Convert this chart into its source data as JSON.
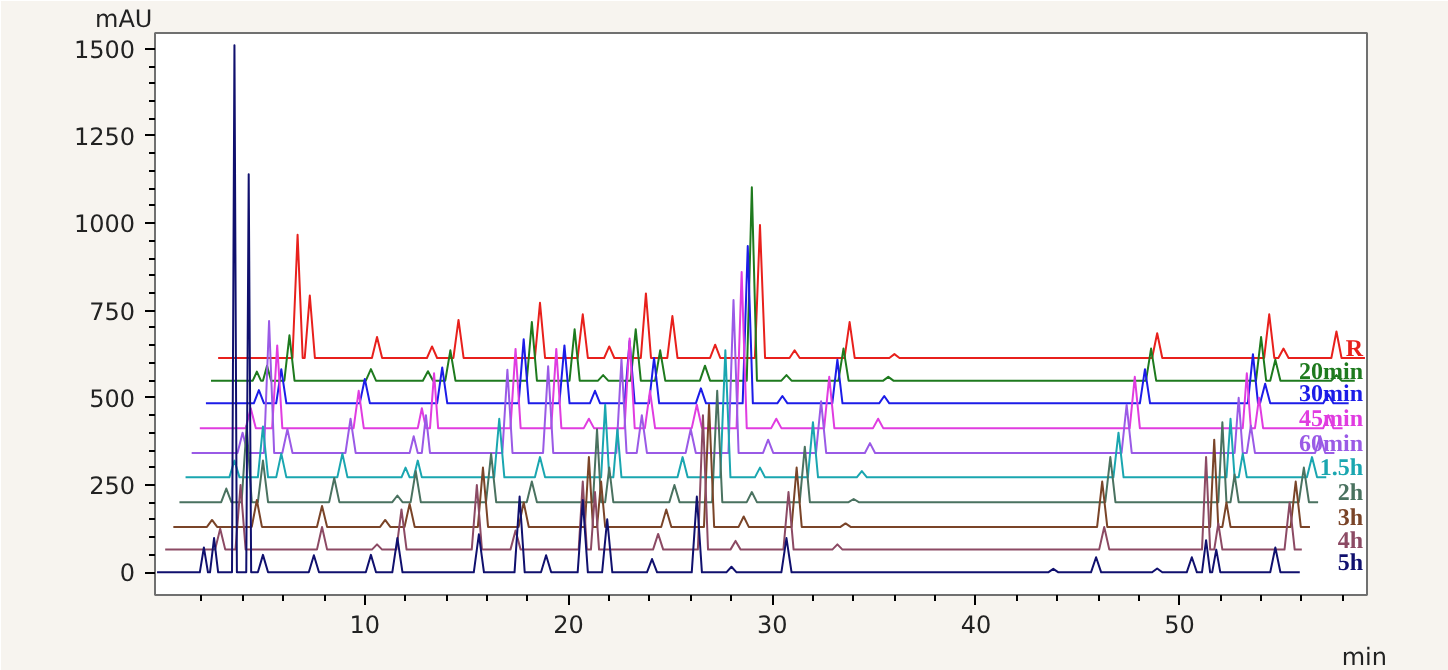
{
  "chart_data": {
    "type": "line",
    "xlabel": "min",
    "ylabel": "mAU",
    "xlim": [
      -0.3,
      59.2
    ],
    "ylim": [
      -65,
      1545
    ],
    "grid": false,
    "marker": "none",
    "line_style": "solid",
    "xticks": [
      {
        "value": 2,
        "label": null
      },
      {
        "value": 4,
        "label": null
      },
      {
        "value": 6,
        "label": null
      },
      {
        "value": 8,
        "label": null
      },
      10,
      {
        "value": 12,
        "label": null
      },
      {
        "value": 14,
        "label": null
      },
      {
        "value": 16,
        "label": null
      },
      {
        "value": 18,
        "label": null
      },
      20,
      {
        "value": 22,
        "label": null
      },
      {
        "value": 24,
        "label": null
      },
      {
        "value": 26,
        "label": null
      },
      {
        "value": 28,
        "label": null
      },
      30,
      {
        "value": 32,
        "label": null
      },
      {
        "value": 34,
        "label": null
      },
      {
        "value": 36,
        "label": null
      },
      {
        "value": 38,
        "label": null
      },
      40,
      {
        "value": 42,
        "label": null
      },
      {
        "value": 44,
        "label": null
      },
      {
        "value": 46,
        "label": null
      },
      {
        "value": 48,
        "label": null
      },
      50,
      {
        "value": 52,
        "label": null
      },
      {
        "value": 54,
        "label": null
      },
      {
        "value": 56,
        "label": null
      },
      {
        "value": 58,
        "label": null
      }
    ],
    "yticks": [
      0,
      {
        "value": 50,
        "label": null
      },
      {
        "value": 100,
        "label": null
      },
      {
        "value": 150,
        "label": null
      },
      {
        "value": 200,
        "label": null
      },
      250,
      {
        "value": 300,
        "label": null
      },
      {
        "value": 350,
        "label": null
      },
      {
        "value": 400,
        "label": null
      },
      {
        "value": 450,
        "label": null
      },
      500,
      {
        "value": 550,
        "label": null
      },
      {
        "value": 600,
        "label": null
      },
      {
        "value": 650,
        "label": null
      },
      {
        "value": 700,
        "label": null
      },
      750,
      {
        "value": 800,
        "label": null
      },
      {
        "value": 850,
        "label": null
      },
      {
        "value": 900,
        "label": null
      },
      {
        "value": 950,
        "label": null
      },
      1000,
      {
        "value": 1050,
        "label": null
      },
      {
        "value": 1100,
        "label": null
      },
      {
        "value": 1150,
        "label": null
      },
      {
        "value": 1200,
        "label": null
      },
      1250,
      {
        "value": 1300,
        "label": null
      },
      {
        "value": 1350,
        "label": null
      },
      {
        "value": 1400,
        "label": null
      },
      {
        "value": 1450,
        "label": null
      },
      1500
    ],
    "series": [
      {
        "name": "R",
        "color": "#e8201c",
        "x": [
          2.8,
          6.45,
          6.7,
          6.95,
          7.05,
          7.3,
          7.55,
          10.35,
          10.6,
          10.85,
          13.05,
          13.3,
          13.55,
          14.35,
          14.6,
          14.85,
          18.35,
          18.6,
          18.85,
          20.45,
          20.7,
          20.95,
          21.75,
          22.0,
          22.25,
          23.55,
          23.8,
          24.05,
          24.85,
          25.1,
          25.35,
          26.95,
          27.2,
          27.45,
          29.15,
          29.4,
          29.65,
          30.85,
          31.1,
          31.35,
          33.55,
          33.8,
          34.05,
          35.75,
          36.0,
          36.25,
          48.65,
          48.9,
          49.15,
          54.15,
          54.4,
          54.65,
          54.85,
          55.1,
          55.35,
          57.45,
          57.7,
          57.95,
          59.1
        ],
        "values": [
          614,
          614,
          967,
          614,
          614,
          793,
          614,
          614,
          674,
          614,
          614,
          647,
          614,
          614,
          723,
          614,
          614,
          772,
          614,
          614,
          739,
          614,
          614,
          647,
          614,
          614,
          799,
          614,
          614,
          734,
          614,
          614,
          652,
          614,
          614,
          995,
          614,
          614,
          636,
          614,
          614,
          717,
          614,
          614,
          625,
          614,
          614,
          685,
          614,
          614,
          739,
          614,
          614,
          641,
          614,
          614,
          690,
          614,
          614
        ]
      },
      {
        "name": "20min",
        "color": "#1e7a1e",
        "x": [
          2.45,
          4.5,
          4.7,
          4.9,
          5.0,
          5.2,
          5.4,
          6.05,
          6.3,
          6.55,
          10.05,
          10.3,
          10.55,
          12.85,
          13.1,
          13.35,
          13.95,
          14.2,
          14.45,
          17.95,
          18.2,
          18.45,
          20.05,
          20.3,
          20.55,
          21.45,
          21.7,
          21.95,
          23.05,
          23.3,
          23.55,
          24.25,
          24.5,
          24.75,
          26.45,
          26.7,
          26.95,
          28.75,
          29.0,
          29.25,
          30.45,
          30.7,
          30.95,
          33.25,
          33.5,
          33.75,
          35.45,
          35.7,
          35.95,
          48.35,
          48.6,
          48.85,
          53.75,
          54.0,
          54.25,
          54.45,
          54.7,
          54.95,
          57.45,
          57.7,
          57.95,
          58.6
        ],
        "values": [
          549,
          549,
          575,
          549,
          549,
          592,
          549,
          549,
          679,
          549,
          549,
          582,
          549,
          549,
          576,
          549,
          549,
          636,
          549,
          549,
          717,
          549,
          549,
          696,
          549,
          549,
          565,
          549,
          549,
          696,
          549,
          549,
          636,
          549,
          549,
          592,
          549,
          549,
          1103,
          549,
          549,
          565,
          549,
          549,
          641,
          549,
          549,
          560,
          549,
          549,
          641,
          549,
          549,
          674,
          549,
          549,
          609,
          549,
          549,
          565,
          549,
          549
        ]
      },
      {
        "name": "30min",
        "color": "#1c1ce8",
        "x": [
          2.2,
          4.55,
          4.8,
          5.05,
          5.65,
          5.9,
          6.15,
          9.75,
          10.0,
          10.25,
          13.55,
          13.8,
          14.05,
          17.55,
          17.8,
          18.05,
          19.55,
          19.8,
          20.05,
          21.05,
          21.3,
          21.55,
          22.75,
          23.0,
          23.25,
          23.95,
          24.2,
          24.45,
          26.25,
          26.5,
          26.75,
          28.55,
          28.8,
          29.05,
          30.25,
          30.5,
          30.75,
          32.95,
          33.2,
          33.45,
          35.25,
          35.5,
          35.75,
          48.05,
          48.3,
          48.55,
          53.35,
          53.6,
          53.85,
          53.95,
          54.2,
          54.45,
          57.05,
          57.3,
          57.55,
          58.3
        ],
        "values": [
          484,
          484,
          522,
          484,
          484,
          582,
          484,
          484,
          554,
          484,
          484,
          587,
          484,
          484,
          668,
          484,
          484,
          650,
          484,
          484,
          520,
          484,
          484,
          663,
          484,
          484,
          614,
          484,
          484,
          527,
          484,
          484,
          935,
          484,
          484,
          505,
          484,
          484,
          609,
          484,
          484,
          505,
          484,
          484,
          582,
          484,
          484,
          625,
          484,
          484,
          540,
          484,
          484,
          510,
          484,
          484
        ]
      },
      {
        "name": "45min",
        "color": "#e03ce0",
        "x": [
          1.9,
          4.15,
          4.4,
          4.65,
          5.45,
          5.7,
          5.95,
          9.45,
          9.7,
          9.95,
          12.6,
          12.8,
          13.0,
          13.2,
          13.4,
          13.6,
          17.15,
          17.4,
          17.65,
          19.15,
          19.4,
          19.65,
          20.75,
          21.0,
          21.25,
          22.75,
          23.0,
          23.25,
          23.75,
          24.0,
          24.25,
          26.05,
          26.3,
          26.55,
          28.25,
          28.5,
          28.75,
          29.95,
          30.2,
          30.45,
          32.55,
          32.8,
          33.05,
          34.95,
          35.2,
          35.45,
          47.55,
          47.8,
          48.05,
          53.1,
          53.3,
          53.5,
          53.7,
          53.9,
          54.1,
          57.05,
          57.3,
          57.55,
          58.0
        ],
        "values": [
          413,
          413,
          470,
          413,
          413,
          650,
          413,
          413,
          520,
          413,
          413,
          470,
          413,
          413,
          570,
          413,
          413,
          640,
          413,
          413,
          640,
          413,
          413,
          440,
          413,
          413,
          670,
          413,
          413,
          520,
          413,
          413,
          480,
          413,
          413,
          860,
          413,
          413,
          440,
          413,
          413,
          560,
          413,
          413,
          440,
          413,
          413,
          560,
          413,
          413,
          570,
          413,
          413,
          500,
          413,
          413,
          450,
          413,
          413
        ]
      },
      {
        "name": "60min",
        "color": "#9a5ae6",
        "x": [
          1.5,
          3.75,
          4.0,
          4.25,
          5.05,
          5.3,
          5.55,
          5.95,
          6.2,
          6.45,
          9.05,
          9.3,
          9.55,
          12.2,
          12.4,
          12.6,
          12.8,
          13.0,
          13.2,
          16.75,
          17.0,
          17.25,
          18.75,
          19.0,
          19.25,
          22.35,
          22.6,
          22.85,
          23.35,
          23.6,
          23.85,
          25.75,
          26.0,
          26.25,
          27.85,
          28.1,
          28.35,
          29.55,
          29.8,
          30.05,
          32.15,
          32.4,
          32.65,
          34.55,
          34.8,
          35.05,
          47.15,
          47.4,
          47.65,
          52.7,
          52.9,
          53.1,
          53.3,
          53.5,
          53.7,
          56.65,
          56.9,
          57.15,
          57.6
        ],
        "values": [
          342,
          342,
          400,
          342,
          342,
          720,
          342,
          342,
          410,
          342,
          342,
          440,
          342,
          342,
          390,
          342,
          342,
          450,
          342,
          342,
          580,
          342,
          342,
          590,
          342,
          342,
          610,
          342,
          342,
          450,
          342,
          342,
          410,
          342,
          342,
          780,
          342,
          342,
          380,
          342,
          342,
          490,
          342,
          342,
          370,
          342,
          342,
          480,
          342,
          342,
          500,
          342,
          342,
          420,
          342,
          342,
          390,
          342,
          342
        ]
      },
      {
        "name": "1.5h",
        "color": "#1aa6b0",
        "x": [
          1.2,
          3.35,
          3.6,
          3.85,
          4.75,
          5.0,
          5.25,
          5.65,
          5.9,
          6.15,
          8.65,
          8.9,
          9.15,
          11.8,
          12.0,
          12.2,
          12.4,
          12.6,
          12.8,
          16.35,
          16.6,
          16.85,
          18.35,
          18.6,
          18.85,
          21.6,
          21.8,
          22.0,
          22.2,
          22.4,
          22.6,
          25.35,
          25.6,
          25.85,
          27.45,
          27.7,
          27.95,
          29.15,
          29.4,
          29.65,
          31.75,
          32.0,
          32.25,
          34.15,
          34.4,
          34.65,
          46.75,
          47.0,
          47.25,
          52.3,
          52.5,
          52.7,
          52.9,
          53.1,
          53.3,
          56.25,
          56.5,
          56.75,
          57.2
        ],
        "values": [
          272,
          272,
          320,
          272,
          272,
          418,
          272,
          272,
          340,
          272,
          272,
          340,
          272,
          272,
          300,
          272,
          272,
          320,
          272,
          272,
          440,
          272,
          272,
          330,
          272,
          272,
          480,
          272,
          272,
          410,
          272,
          272,
          330,
          272,
          272,
          636,
          272,
          272,
          300,
          272,
          272,
          430,
          272,
          272,
          290,
          272,
          272,
          400,
          272,
          272,
          440,
          272,
          272,
          340,
          272,
          272,
          330,
          272,
          272
        ]
      },
      {
        "name": "2h",
        "color": "#4a7260",
        "x": [
          0.9,
          2.95,
          3.2,
          3.45,
          3.95,
          4.2,
          4.45,
          4.75,
          5.0,
          5.25,
          8.25,
          8.5,
          8.75,
          11.35,
          11.6,
          11.85,
          12.25,
          12.5,
          12.75,
          15.95,
          16.2,
          16.45,
          17.95,
          18.2,
          18.45,
          21.2,
          21.4,
          21.6,
          21.8,
          22.0,
          22.2,
          24.95,
          25.2,
          25.45,
          27.05,
          27.3,
          27.55,
          28.75,
          29.0,
          29.25,
          31.35,
          31.6,
          31.85,
          33.75,
          34.0,
          34.25,
          46.35,
          46.6,
          46.85,
          51.9,
          52.1,
          52.3,
          52.5,
          52.7,
          52.9,
          55.85,
          56.1,
          56.35,
          56.8
        ],
        "values": [
          201,
          201,
          240,
          201,
          201,
          420,
          201,
          201,
          320,
          201,
          201,
          270,
          201,
          201,
          220,
          201,
          201,
          290,
          201,
          201,
          340,
          201,
          201,
          260,
          201,
          201,
          410,
          201,
          201,
          300,
          201,
          201,
          250,
          201,
          201,
          520,
          201,
          201,
          230,
          201,
          201,
          360,
          201,
          201,
          210,
          201,
          201,
          330,
          201,
          201,
          430,
          201,
          201,
          280,
          201,
          201,
          300,
          201,
          201
        ]
      },
      {
        "name": "3h",
        "color": "#7a4428",
        "x": [
          0.6,
          2.25,
          2.5,
          2.75,
          4.45,
          4.7,
          4.95,
          7.65,
          7.9,
          8.15,
          10.75,
          11.0,
          11.25,
          11.95,
          12.2,
          12.45,
          15.55,
          15.8,
          16.05,
          17.55,
          17.8,
          18.05,
          20.8,
          21.0,
          21.2,
          21.4,
          21.6,
          21.8,
          24.55,
          24.8,
          25.05,
          26.65,
          26.9,
          27.15,
          28.35,
          28.6,
          28.85,
          30.95,
          31.2,
          31.45,
          33.35,
          33.6,
          33.85,
          45.95,
          46.2,
          46.45,
          51.5,
          51.7,
          51.9,
          52.1,
          52.3,
          52.5,
          55.45,
          55.7,
          55.95,
          56.4
        ],
        "values": [
          130,
          130,
          150,
          130,
          130,
          207,
          130,
          130,
          190,
          130,
          130,
          150,
          130,
          130,
          196,
          130,
          130,
          300,
          130,
          130,
          200,
          130,
          130,
          330,
          130,
          130,
          260,
          130,
          130,
          180,
          130,
          130,
          480,
          130,
          130,
          160,
          130,
          130,
          300,
          130,
          130,
          140,
          130,
          130,
          260,
          130,
          130,
          380,
          130,
          130,
          200,
          130,
          130,
          260,
          130,
          130
        ]
      },
      {
        "name": "4h",
        "color": "#8c4a64",
        "x": [
          0.2,
          2.65,
          2.9,
          3.15,
          3.65,
          3.9,
          4.15,
          7.65,
          7.9,
          8.15,
          10.35,
          10.6,
          10.85,
          11.55,
          11.8,
          12.05,
          15.25,
          15.5,
          15.75,
          17.15,
          17.4,
          17.65,
          20.5,
          20.7,
          20.9,
          21.1,
          21.3,
          21.5,
          24.15,
          24.4,
          24.65,
          26.35,
          26.6,
          26.85,
          27.95,
          28.2,
          28.45,
          30.55,
          30.8,
          31.05,
          32.95,
          33.2,
          33.45,
          46.05,
          46.3,
          46.55,
          51.1,
          51.3,
          51.5,
          51.7,
          51.9,
          52.1,
          55.15,
          55.4,
          55.65,
          56.0
        ],
        "values": [
          65,
          65,
          125,
          65,
          65,
          250,
          65,
          65,
          130,
          65,
          65,
          80,
          65,
          65,
          180,
          65,
          65,
          250,
          65,
          65,
          120,
          65,
          65,
          260,
          65,
          65,
          230,
          65,
          65,
          110,
          65,
          65,
          450,
          65,
          65,
          90,
          65,
          65,
          230,
          65,
          65,
          80,
          65,
          65,
          130,
          65,
          65,
          330,
          65,
          65,
          140,
          65,
          65,
          200,
          65,
          65
        ]
      },
      {
        "name": "5h",
        "color": "#10106e",
        "x": [
          -0.2,
          1.9,
          2.1,
          2.3,
          2.4,
          2.6,
          2.8,
          3.48,
          3.6,
          3.72,
          4.18,
          4.3,
          4.42,
          4.75,
          5.0,
          5.25,
          7.25,
          7.5,
          7.75,
          10.05,
          10.3,
          10.55,
          11.35,
          11.6,
          11.85,
          15.35,
          15.6,
          15.85,
          17.35,
          17.6,
          17.85,
          18.65,
          18.9,
          19.15,
          20.45,
          20.7,
          20.95,
          21.65,
          21.9,
          22.15,
          23.85,
          24.1,
          24.35,
          26.05,
          26.3,
          26.55,
          27.75,
          28.0,
          28.25,
          30.45,
          30.7,
          30.95,
          43.55,
          43.8,
          44.05,
          45.65,
          45.9,
          46.15,
          48.65,
          48.9,
          49.15,
          50.35,
          50.6,
          50.85,
          51.1,
          51.3,
          51.5,
          51.6,
          51.8,
          52.0,
          54.45,
          54.7,
          54.95,
          55.9
        ],
        "values": [
          0,
          0,
          71,
          0,
          0,
          98,
          0,
          0,
          1510,
          0,
          0,
          1140,
          0,
          0,
          50,
          0,
          0,
          49,
          0,
          0,
          50,
          0,
          0,
          98,
          0,
          0,
          109,
          0,
          0,
          217,
          0,
          0,
          49,
          0,
          0,
          207,
          0,
          0,
          152,
          0,
          0,
          38,
          0,
          0,
          217,
          0,
          0,
          16,
          0,
          0,
          98,
          0,
          0,
          10,
          0,
          0,
          43,
          0,
          0,
          11,
          0,
          0,
          43,
          0,
          0,
          92,
          0,
          0,
          65,
          0,
          0,
          71,
          0,
          0
        ]
      }
    ]
  }
}
